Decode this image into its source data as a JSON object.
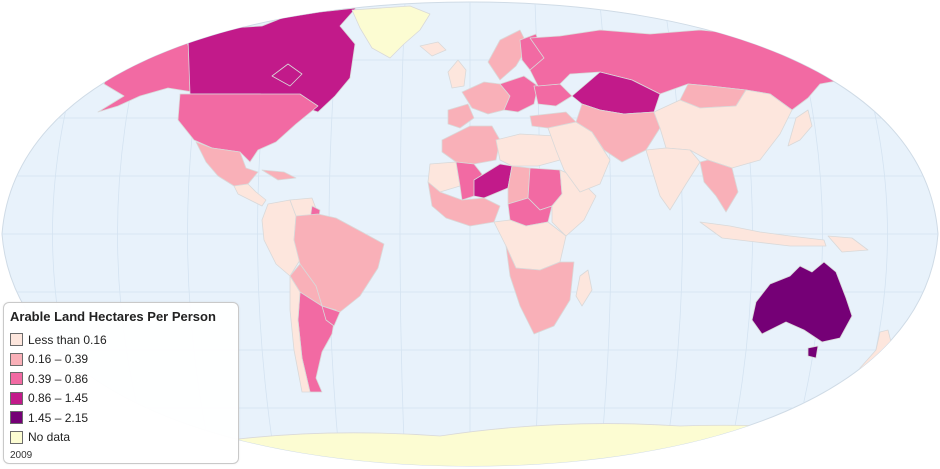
{
  "legend": {
    "title": "Arable Land Hectares Per Person",
    "classes": [
      {
        "label": "Less than 0.16",
        "color": "#fde6dd"
      },
      {
        "label": "0.16 – 0.39",
        "color": "#f9b0b8"
      },
      {
        "label": "0.39 – 0.86",
        "color": "#f26aa3"
      },
      {
        "label": "0.86 – 1.45",
        "color": "#c21a8a"
      },
      {
        "label": "1.45 – 2.15",
        "color": "#750076"
      },
      {
        "label": "No data",
        "color": "#fcfcd2"
      }
    ],
    "year": "2009"
  },
  "colors": {
    "ocean": "#e8f2fb",
    "graticule": "#d4e3f1",
    "border": "#d9d9d9"
  },
  "regions": [
    {
      "id": "alaska",
      "class": 2
    },
    {
      "id": "canada",
      "class": 3
    },
    {
      "id": "greenland",
      "class": 5
    },
    {
      "id": "usa",
      "class": 2
    },
    {
      "id": "mexico",
      "class": 1
    },
    {
      "id": "central-america",
      "class": 0
    },
    {
      "id": "cuba",
      "class": 1
    },
    {
      "id": "colombia-peru",
      "class": 0
    },
    {
      "id": "venezuela",
      "class": 0
    },
    {
      "id": "guyana",
      "class": 2
    },
    {
      "id": "brazil",
      "class": 1
    },
    {
      "id": "bolivia-paraguay",
      "class": 1
    },
    {
      "id": "argentina",
      "class": 2
    },
    {
      "id": "uruguay",
      "class": 2
    },
    {
      "id": "chile",
      "class": 0
    },
    {
      "id": "iceland",
      "class": 0
    },
    {
      "id": "uk-ireland",
      "class": 0
    },
    {
      "id": "scandinavia",
      "class": 1
    },
    {
      "id": "finland",
      "class": 2
    },
    {
      "id": "western-europe",
      "class": 1
    },
    {
      "id": "iberia",
      "class": 1
    },
    {
      "id": "eastern-europe",
      "class": 2
    },
    {
      "id": "ukraine",
      "class": 2
    },
    {
      "id": "russia",
      "class": 2
    },
    {
      "id": "kazakhstan",
      "class": 3
    },
    {
      "id": "turkey",
      "class": 1
    },
    {
      "id": "north-africa",
      "class": 1
    },
    {
      "id": "libya-egypt",
      "class": 0
    },
    {
      "id": "mauritania",
      "class": 0
    },
    {
      "id": "mali",
      "class": 2
    },
    {
      "id": "niger",
      "class": 3
    },
    {
      "id": "chad",
      "class": 1
    },
    {
      "id": "sudan",
      "class": 2
    },
    {
      "id": "west-africa",
      "class": 1
    },
    {
      "id": "central-african-republic",
      "class": 2
    },
    {
      "id": "horn-of-africa",
      "class": 0
    },
    {
      "id": "central-africa",
      "class": 0
    },
    {
      "id": "southern-africa",
      "class": 1
    },
    {
      "id": "madagascar",
      "class": 0
    },
    {
      "id": "middle-east",
      "class": 0
    },
    {
      "id": "iran-central-asia",
      "class": 1
    },
    {
      "id": "mongolia",
      "class": 1
    },
    {
      "id": "china",
      "class": 0
    },
    {
      "id": "india",
      "class": 0
    },
    {
      "id": "southeast-asia",
      "class": 1
    },
    {
      "id": "japan",
      "class": 0
    },
    {
      "id": "indonesia",
      "class": 0
    },
    {
      "id": "papua-new-guinea",
      "class": 0
    },
    {
      "id": "australia",
      "class": 4
    },
    {
      "id": "tasmania",
      "class": 4
    },
    {
      "id": "new-zealand",
      "class": 0
    },
    {
      "id": "antarctica",
      "class": 5
    }
  ]
}
